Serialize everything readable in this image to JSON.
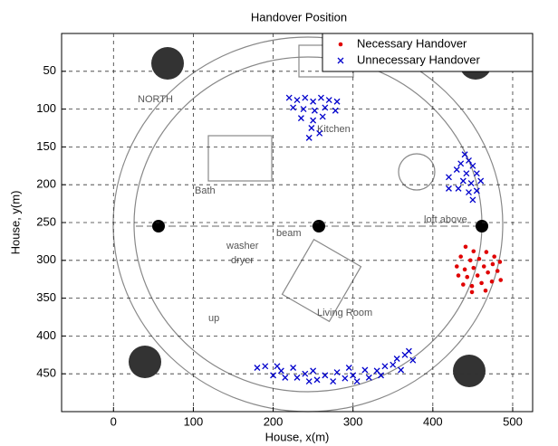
{
  "chart_data": {
    "type": "scatter",
    "title": "Handover Position",
    "x_label": "House, x(m)",
    "y_label": "House, y(m)",
    "xlim": [
      -65,
      525
    ],
    "ylim": [
      0,
      500
    ],
    "y_inverted": true,
    "xticks": [
      0,
      100,
      200,
      300,
      400,
      500
    ],
    "yticks": [
      50,
      100,
      150,
      200,
      250,
      300,
      350,
      400,
      450
    ],
    "grid": true,
    "legend": "upper right",
    "plan_labels": [
      "NORTH",
      "Kitchen",
      "Bath",
      "beam",
      "loft above",
      "washer",
      "dryer",
      "Living Room",
      "up"
    ],
    "series": [
      {
        "name": "Necessary Handover",
        "color": "#e00000",
        "marker": "dot",
        "x": [
          441,
          451,
          435,
          447,
          458,
          467,
          477,
          430,
          440,
          451,
          464,
          475,
          484,
          432,
          443,
          456,
          469,
          481,
          438,
          449,
          461,
          474,
          485,
          449,
          466
        ],
        "y": [
          282,
          288,
          295,
          300,
          298,
          289,
          295,
          308,
          312,
          310,
          308,
          305,
          302,
          320,
          322,
          320,
          316,
          314,
          332,
          334,
          330,
          328,
          326,
          342,
          340
        ]
      },
      {
        "name": "Unnecessary Handover",
        "color": "#0000cc",
        "marker": "x",
        "x": [
          220,
          230,
          240,
          250,
          260,
          270,
          280,
          225,
          238,
          252,
          265,
          278,
          235,
          250,
          262,
          248,
          258,
          245,
          440,
          445,
          435,
          450,
          430,
          442,
          455,
          438,
          448,
          460,
          432,
          445,
          455,
          420,
          420,
          450,
          180,
          190,
          200,
          210,
          215,
          225,
          230,
          240,
          250,
          255,
          265,
          275,
          280,
          290,
          300,
          305,
          315,
          320,
          330,
          340,
          350,
          355,
          365,
          370,
          375,
          360,
          335,
          295,
          245,
          205
        ],
        "y": [
          85,
          88,
          85,
          90,
          85,
          88,
          90,
          98,
          100,
          102,
          98,
          102,
          112,
          115,
          110,
          125,
          132,
          138,
          160,
          168,
          172,
          175,
          180,
          185,
          185,
          195,
          198,
          195,
          205,
          210,
          208,
          190,
          205,
          220,
          442,
          440,
          452,
          446,
          455,
          442,
          455,
          450,
          446,
          458,
          452,
          460,
          448,
          456,
          452,
          460,
          445,
          455,
          446,
          440,
          438,
          430,
          425,
          420,
          432,
          445,
          452,
          442,
          460,
          440
        ]
      }
    ]
  }
}
